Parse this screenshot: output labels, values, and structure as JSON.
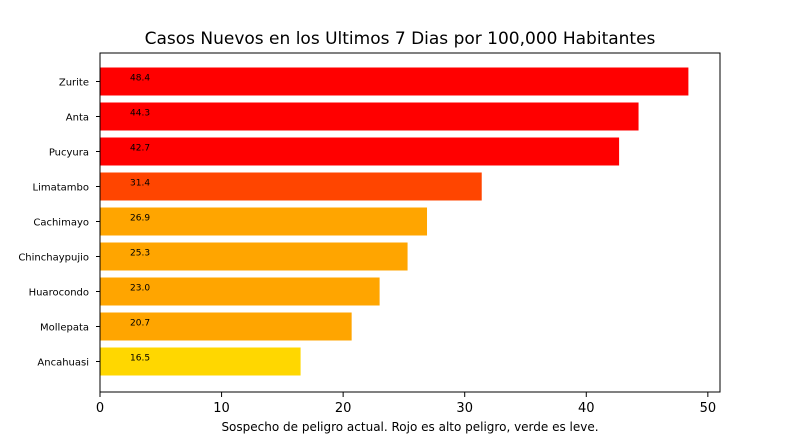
{
  "chart_data": {
    "type": "bar",
    "orientation": "horizontal",
    "title": "Casos Nuevos en los Ultimos 7 Dias por 100,000 Habitantes",
    "xlabel": "Sospecho de peligro actual. Rojo es alto peligro, verde es leve.",
    "ylabel": "",
    "xlim": [
      0,
      51
    ],
    "xticks": [
      "0",
      "10",
      "20",
      "30",
      "40",
      "50"
    ],
    "grid": false,
    "categories": [
      "Zurite",
      "Anta",
      "Pucyura",
      "Limatambo",
      "Cachimayo",
      "Chinchaypujio",
      "Huarocondo",
      "Mollepata",
      "Ancahuasi"
    ],
    "values": [
      48.4,
      44.3,
      42.7,
      31.4,
      26.9,
      25.3,
      23.0,
      20.7,
      16.5
    ],
    "value_labels": [
      "48.4",
      "44.3",
      "42.7",
      "31.4",
      "26.9",
      "25.3",
      "23.0",
      "20.7",
      "16.5"
    ],
    "bar_colors": [
      "#ff0000",
      "#ff0000",
      "#ff0000",
      "#ff4500",
      "#ffa500",
      "#ffa500",
      "#ffa500",
      "#ffa500",
      "#ffd700"
    ]
  }
}
